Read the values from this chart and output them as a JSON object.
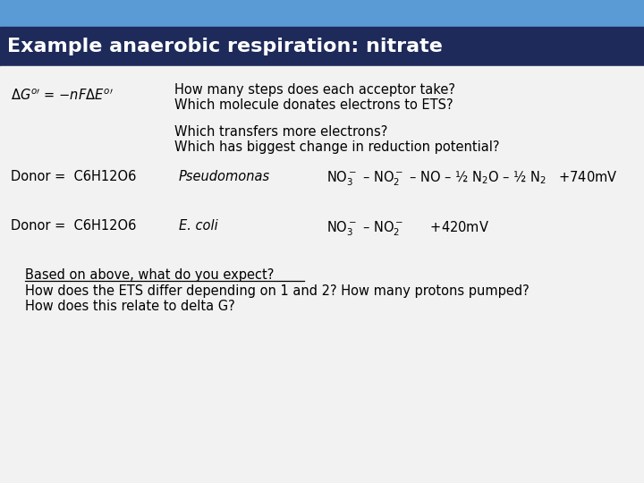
{
  "title": "Example anaerobic respiration: nitrate",
  "title_bg": "#1e2a5a",
  "title_color": "#ffffff",
  "header_bg": "#5b9bd5",
  "body_bg": "#f2f2f2",
  "q1": "How many steps does each acceptor take?",
  "q2": "Which molecule donates electrons to ETS?",
  "q3": "Which transfers more electrons?",
  "q4": "Which has biggest change in reduction potential?",
  "donor1_label": "Donor =  C6H12O6",
  "donor1_org": "Pseudomonas",
  "donor2_label": "Donor =  C6H12O6",
  "donor2_org": "E. coli",
  "bottom_q": "Based on above, what do you expect?",
  "bottom_line1": "How does the ETS differ depending on 1 and 2? How many protons pumped?",
  "bottom_line2": "How does this relate to delta G?"
}
